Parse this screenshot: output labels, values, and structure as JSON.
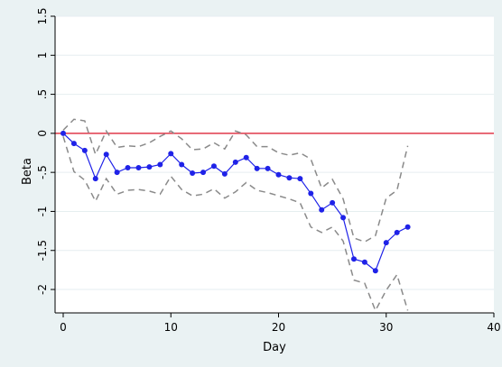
{
  "chart_data": {
    "type": "line",
    "title": "",
    "xlabel": "Day",
    "ylabel": "Beta",
    "xlim": [
      0,
      40
    ],
    "ylim": [
      -2.3,
      1.5
    ],
    "x_ticks": [
      "0",
      "10",
      "20",
      "30",
      "40"
    ],
    "y_ticks": [
      "1.5",
      "1",
      ".5",
      "0",
      "-.5",
      "-1",
      "-1.5",
      "-2"
    ],
    "x_tick_values": [
      0,
      10,
      20,
      30,
      40
    ],
    "y_tick_values": [
      1.5,
      1,
      0.5,
      0,
      -0.5,
      -1,
      -1.5,
      -2
    ],
    "reference_line": {
      "y": 0,
      "color": "#e0394a"
    },
    "colors": {
      "estimate": "#1f22e8",
      "ci": "#8a8a8a",
      "background": "#eaf2f3",
      "plot_bg": "#ffffff"
    },
    "series": [
      {
        "role": "estimate",
        "x": [
          0,
          1,
          2,
          3,
          4,
          5,
          6,
          7,
          8,
          9,
          10,
          11,
          12,
          13,
          14,
          15,
          16,
          17,
          18,
          19,
          20,
          21,
          22,
          23,
          24,
          25,
          26,
          27,
          28,
          29,
          30,
          31,
          32
        ],
        "values": [
          0,
          -0.13,
          -0.22,
          -0.58,
          -0.27,
          -0.5,
          -0.44,
          -0.44,
          -0.43,
          -0.4,
          -0.26,
          -0.4,
          -0.51,
          -0.5,
          -0.42,
          -0.52,
          -0.37,
          -0.31,
          -0.45,
          -0.45,
          -0.53,
          -0.57,
          -0.58,
          -0.77,
          -0.98,
          -0.89,
          -1.08,
          -1.61,
          -1.65,
          -1.76,
          -1.4,
          -1.27,
          -1.2
        ]
      },
      {
        "role": "ci-upper",
        "x": [
          0,
          1,
          2,
          3,
          4,
          5,
          6,
          7,
          8,
          9,
          10,
          11,
          12,
          13,
          14,
          15,
          16,
          17,
          18,
          19,
          20,
          21,
          22,
          23,
          24,
          25,
          26,
          27,
          28,
          29,
          30,
          31,
          32
        ],
        "values": [
          0.04,
          0.18,
          0.16,
          -0.27,
          0.03,
          -0.18,
          -0.16,
          -0.17,
          -0.12,
          -0.04,
          0.03,
          -0.07,
          -0.21,
          -0.2,
          -0.12,
          -0.2,
          0.03,
          -0.02,
          -0.17,
          -0.17,
          -0.25,
          -0.28,
          -0.25,
          -0.33,
          -0.7,
          -0.59,
          -0.84,
          -1.34,
          -1.39,
          -1.31,
          -0.83,
          -0.73,
          -0.16
        ]
      },
      {
        "role": "ci-lower",
        "x": [
          0,
          1,
          2,
          3,
          4,
          5,
          6,
          7,
          8,
          9,
          10,
          11,
          12,
          13,
          14,
          15,
          16,
          17,
          18,
          19,
          20,
          21,
          22,
          23,
          24,
          25,
          26,
          27,
          28,
          29,
          30,
          31,
          32
        ],
        "values": [
          -0.04,
          -0.49,
          -0.6,
          -0.87,
          -0.58,
          -0.78,
          -0.73,
          -0.72,
          -0.74,
          -0.78,
          -0.55,
          -0.72,
          -0.8,
          -0.78,
          -0.71,
          -0.83,
          -0.75,
          -0.63,
          -0.73,
          -0.76,
          -0.8,
          -0.84,
          -0.89,
          -1.2,
          -1.27,
          -1.2,
          -1.38,
          -1.88,
          -1.92,
          -2.27,
          -2.01,
          -1.81,
          -2.27
        ]
      }
    ]
  }
}
